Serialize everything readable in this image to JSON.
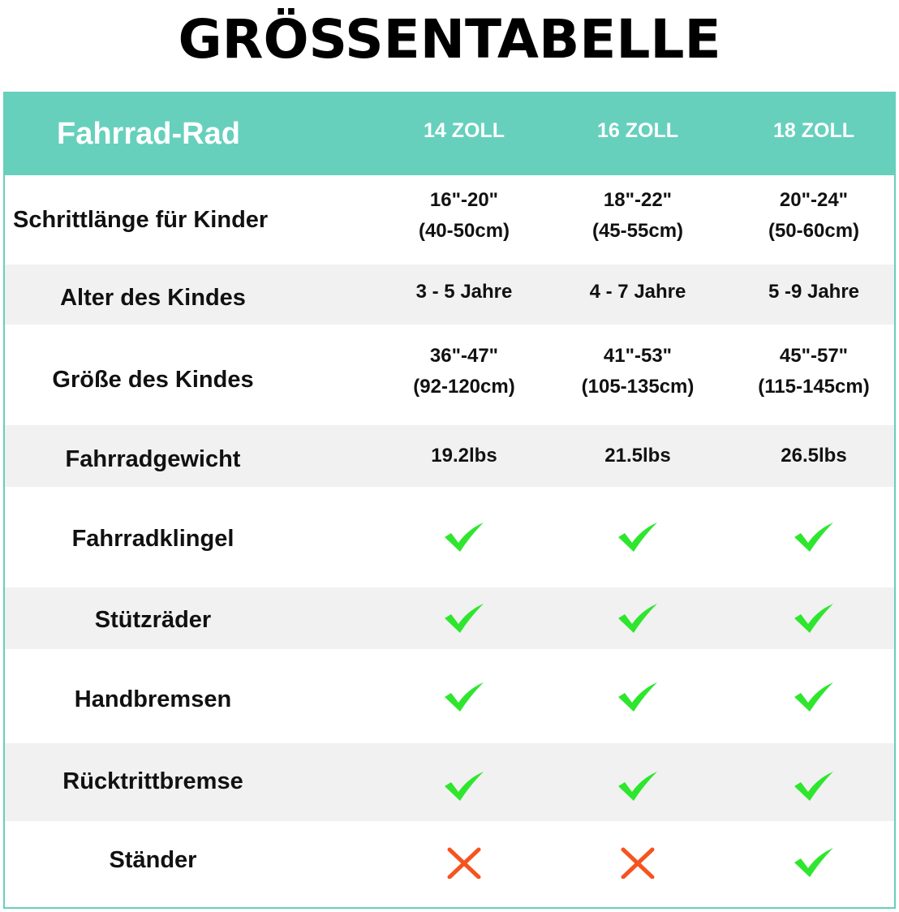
{
  "title": "GRÖSSENTABELLE",
  "colors": {
    "header_bg": "#66d0bd",
    "check": "#2ee62e",
    "cross": "#f5541f",
    "stripe": "#f1f1f1"
  },
  "header": {
    "label": "Fahrrad-Rad",
    "sizes": [
      "14 ZOLL",
      "16 ZOLL",
      "18 ZOLL"
    ]
  },
  "rows": [
    {
      "label": "Schrittlänge für Kinder",
      "values": [
        [
          "16\"-20\"",
          "(40-50cm)"
        ],
        [
          "18\"-22\"",
          "(45-55cm)"
        ],
        [
          "20\"-24\"",
          "(50-60cm)"
        ]
      ]
    },
    {
      "label": "Alter des Kindes",
      "values": [
        [
          "3 - 5 Jahre"
        ],
        [
          "4 - 7 Jahre"
        ],
        [
          "5 -9 Jahre"
        ]
      ]
    },
    {
      "label": "Größe des Kindes",
      "values": [
        [
          "36\"-47\"",
          "(92-120cm)"
        ],
        [
          "41\"-53\"",
          "(105-135cm)"
        ],
        [
          "45\"-57\"",
          "(115-145cm)"
        ]
      ]
    },
    {
      "label": "Fahrradgewicht",
      "values": [
        [
          "19.2lbs"
        ],
        [
          "21.5lbs"
        ],
        [
          "26.5lbs"
        ]
      ]
    },
    {
      "label": "Fahrradklingel",
      "marks": [
        "check-icon",
        "check-icon",
        "check-icon"
      ]
    },
    {
      "label": "Stützräder",
      "marks": [
        "check-icon",
        "check-icon",
        "check-icon"
      ]
    },
    {
      "label": "Handbremsen",
      "marks": [
        "check-icon",
        "check-icon",
        "check-icon"
      ]
    },
    {
      "label": "Rücktrittbremse",
      "marks": [
        "check-icon",
        "check-icon",
        "check-icon"
      ]
    },
    {
      "label": "Ständer",
      "marks": [
        "cross-icon",
        "cross-icon",
        "check-icon"
      ]
    }
  ]
}
